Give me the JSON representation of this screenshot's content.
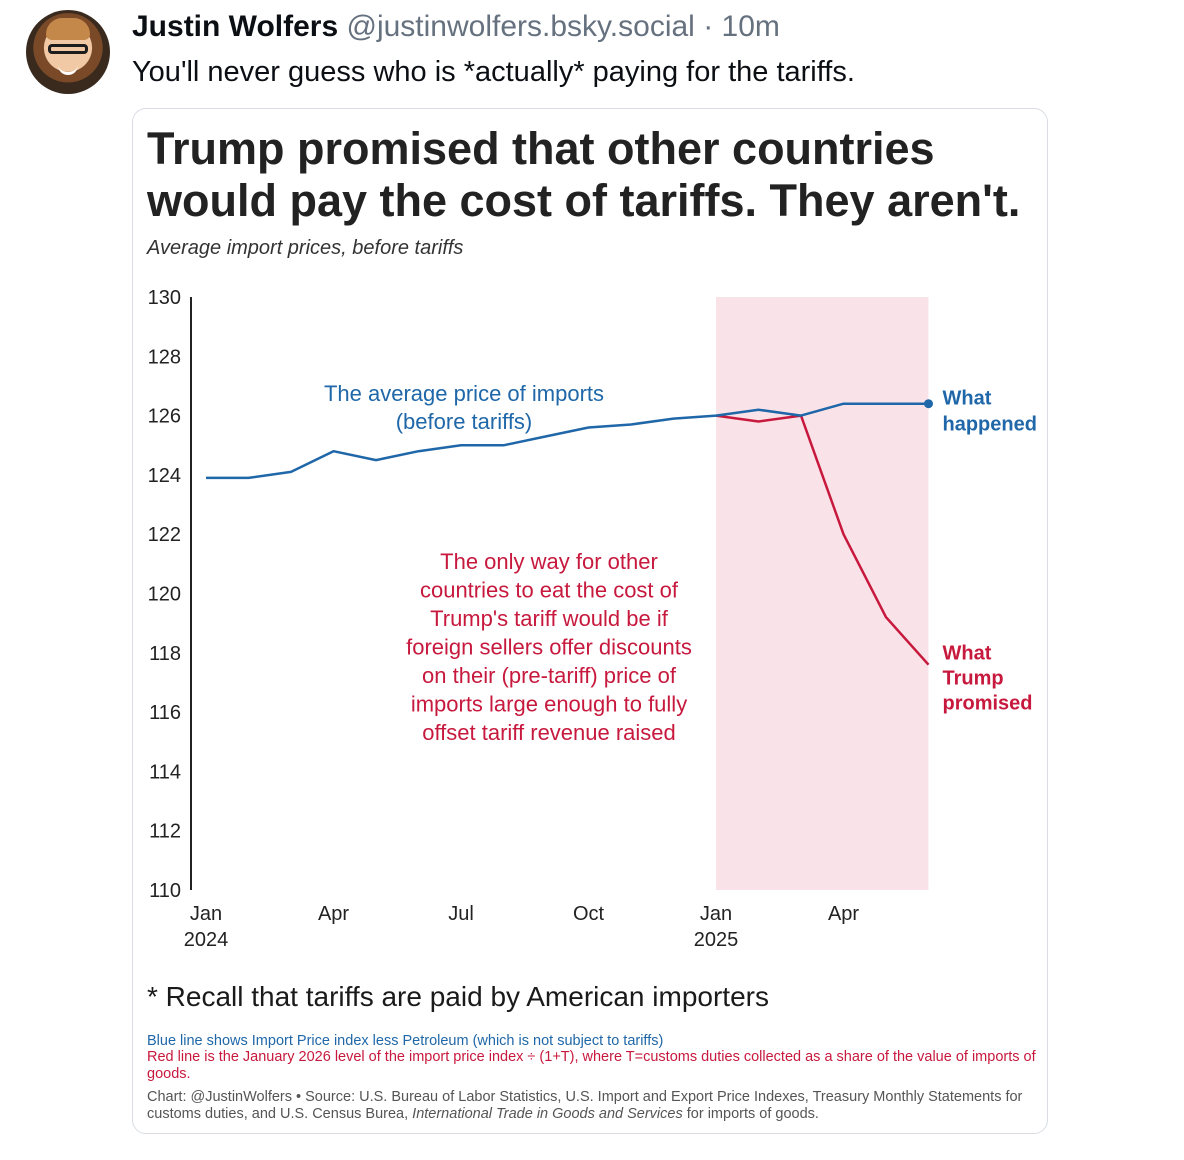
{
  "post": {
    "author_name": "Justin Wolfers",
    "handle": "@justinwolfers.bsky.social",
    "separator": "·",
    "time_ago": "10m",
    "text": "You'll never guess who is *actually* paying for the tariffs."
  },
  "avatar_icon": "person-avatar-icon",
  "chart_data": {
    "type": "line",
    "title": "Trump promised that other countries would pay the cost of tariffs. They aren't.",
    "subtitle": "Average import prices, before tariffs",
    "x": [
      "2024-01",
      "2024-02",
      "2024-03",
      "2024-04",
      "2024-05",
      "2024-06",
      "2024-07",
      "2024-08",
      "2024-09",
      "2024-10",
      "2024-11",
      "2024-12",
      "2025-01",
      "2025-02",
      "2025-03",
      "2025-04",
      "2025-05",
      "2025-06"
    ],
    "x_ticks": [
      {
        "x": "2024-01",
        "lines": [
          "Jan",
          "2024"
        ]
      },
      {
        "x": "2024-04",
        "lines": [
          "Apr"
        ]
      },
      {
        "x": "2024-07",
        "lines": [
          "Jul"
        ]
      },
      {
        "x": "2024-10",
        "lines": [
          "Oct"
        ]
      },
      {
        "x": "2025-01",
        "lines": [
          "Jan",
          "2025"
        ]
      },
      {
        "x": "2025-04",
        "lines": [
          "Apr"
        ]
      }
    ],
    "y_ticks": [
      110,
      112,
      114,
      116,
      118,
      120,
      122,
      124,
      126,
      128,
      130
    ],
    "ylim": [
      110,
      130
    ],
    "shaded_region": {
      "from": "2025-01",
      "to": "2025-06",
      "color": "#fae3e8"
    },
    "series": [
      {
        "name": "What happened",
        "color": "#1f67a8",
        "x": [
          "2024-01",
          "2024-02",
          "2024-03",
          "2024-04",
          "2024-05",
          "2024-06",
          "2024-07",
          "2024-08",
          "2024-09",
          "2024-10",
          "2024-11",
          "2024-12",
          "2025-01",
          "2025-02",
          "2025-03",
          "2025-04",
          "2025-05",
          "2025-06"
        ],
        "values": [
          123.9,
          123.9,
          124.1,
          124.8,
          124.5,
          124.8,
          125.0,
          125.0,
          125.3,
          125.6,
          125.7,
          125.9,
          126.0,
          126.2,
          126.0,
          126.4,
          126.4,
          126.4
        ]
      },
      {
        "name": "What Trump promised",
        "color": "#c7193d",
        "x": [
          "2025-01",
          "2025-02",
          "2025-03",
          "2025-04",
          "2025-05",
          "2025-06"
        ],
        "values": [
          126.0,
          125.8,
          126.0,
          122.0,
          119.2,
          117.6
        ]
      }
    ],
    "labels": {
      "blue_line_label": [
        "What",
        "happened"
      ],
      "red_line_label": [
        "What",
        "Trump",
        "promised"
      ]
    },
    "annotations": {
      "blue": [
        "The average price of imports",
        "(before tariffs)"
      ],
      "red": [
        "The only way for other",
        "countries to eat the cost of",
        "Trump's tariff would be if",
        "foreign sellers offer discounts",
        "on their (pre-tariff) price of",
        "imports large enough to fully",
        "offset tariff revenue raised"
      ]
    }
  },
  "footer": {
    "recall": "* Recall that tariffs are paid by American importers",
    "note_blue": "Blue line shows Import Price index less Petroleum (which is not subject to tariffs)",
    "note_red": "Red line is the January 2026 level of the import price index ÷ (1+T), where T=customs duties collected as a share of the value of imports of goods.",
    "credit_part1": "Chart: @JustinWolfers • Source: U.S. Bureau of Labor Statistics, U.S. Import and Export Price Indexes, Treasury Monthly Statements for customs duties, and U.S. Census Burea,",
    "credit_italic": "International Trade in Goods and Services",
    "credit_part2": "for imports of goods."
  }
}
